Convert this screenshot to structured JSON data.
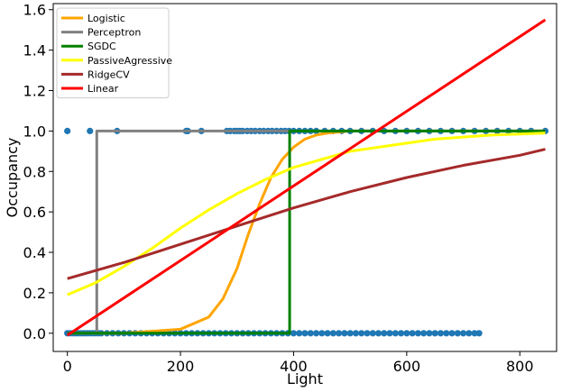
{
  "chart_data": {
    "type": "line",
    "title": "",
    "xlabel": "Light",
    "ylabel": "Occupancy",
    "xlim": [
      -25,
      865
    ],
    "ylim": [
      -0.09,
      1.63
    ],
    "xticks": [
      0,
      200,
      400,
      600,
      800
    ],
    "yticks": [
      0.0,
      0.2,
      0.4,
      0.6,
      0.8,
      1.0,
      1.2,
      1.4,
      1.6
    ],
    "xtick_labels": [
      "0",
      "200",
      "400",
      "600",
      "800"
    ],
    "ytick_labels": [
      "0.0",
      "0.2",
      "0.4",
      "0.6",
      "0.8",
      "1.0",
      "1.2",
      "1.4",
      "1.6"
    ],
    "grid": false,
    "legend_position": "top-left",
    "scatter": {
      "color": "#1f77b4",
      "points": [
        [
          0,
          1
        ],
        [
          40,
          1
        ],
        [
          88,
          1
        ],
        [
          210,
          1
        ],
        [
          213,
          1
        ],
        [
          237,
          1
        ],
        [
          282,
          1
        ],
        [
          288,
          1
        ],
        [
          295,
          1
        ],
        [
          300,
          1
        ],
        [
          305,
          1
        ],
        [
          310,
          1
        ],
        [
          318,
          1
        ],
        [
          325,
          1
        ],
        [
          332,
          1
        ],
        [
          340,
          1
        ],
        [
          347,
          1
        ],
        [
          355,
          1
        ],
        [
          362,
          1
        ],
        [
          370,
          1
        ],
        [
          378,
          1
        ],
        [
          385,
          1
        ],
        [
          392,
          1
        ],
        [
          400,
          1
        ],
        [
          410,
          1
        ],
        [
          420,
          1
        ],
        [
          430,
          1
        ],
        [
          440,
          1
        ],
        [
          455,
          1
        ],
        [
          470,
          1
        ],
        [
          485,
          1
        ],
        [
          500,
          1
        ],
        [
          520,
          1
        ],
        [
          540,
          1
        ],
        [
          560,
          1
        ],
        [
          580,
          1
        ],
        [
          600,
          1
        ],
        [
          620,
          1
        ],
        [
          640,
          1
        ],
        [
          660,
          1
        ],
        [
          680,
          1
        ],
        [
          700,
          1
        ],
        [
          720,
          1
        ],
        [
          740,
          1
        ],
        [
          760,
          1
        ],
        [
          780,
          1
        ],
        [
          800,
          1
        ],
        [
          820,
          1
        ],
        [
          845,
          1
        ],
        [
          0,
          0
        ],
        [
          5,
          0
        ],
        [
          10,
          0
        ],
        [
          15,
          0
        ],
        [
          20,
          0
        ],
        [
          25,
          0
        ],
        [
          30,
          0
        ],
        [
          35,
          0
        ],
        [
          40,
          0
        ],
        [
          45,
          0
        ],
        [
          50,
          0
        ],
        [
          55,
          0
        ],
        [
          60,
          0
        ],
        [
          70,
          0
        ],
        [
          80,
          0
        ],
        [
          90,
          0
        ],
        [
          100,
          0
        ],
        [
          110,
          0
        ],
        [
          120,
          0
        ],
        [
          130,
          0
        ],
        [
          140,
          0
        ],
        [
          150,
          0
        ],
        [
          160,
          0
        ],
        [
          170,
          0
        ],
        [
          180,
          0
        ],
        [
          190,
          0
        ],
        [
          200,
          0
        ],
        [
          210,
          0
        ],
        [
          220,
          0
        ],
        [
          230,
          0
        ],
        [
          240,
          0
        ],
        [
          250,
          0
        ],
        [
          260,
          0
        ],
        [
          270,
          0
        ],
        [
          280,
          0
        ],
        [
          290,
          0
        ],
        [
          300,
          0
        ],
        [
          310,
          0
        ],
        [
          320,
          0
        ],
        [
          330,
          0
        ],
        [
          340,
          0
        ],
        [
          350,
          0
        ],
        [
          360,
          0
        ],
        [
          370,
          0
        ],
        [
          380,
          0
        ],
        [
          390,
          0
        ],
        [
          400,
          0
        ],
        [
          410,
          0
        ],
        [
          420,
          0
        ],
        [
          430,
          0
        ],
        [
          440,
          0
        ],
        [
          450,
          0
        ],
        [
          460,
          0
        ],
        [
          470,
          0
        ],
        [
          480,
          0
        ],
        [
          490,
          0
        ],
        [
          500,
          0
        ],
        [
          510,
          0
        ],
        [
          520,
          0
        ],
        [
          530,
          0
        ],
        [
          540,
          0
        ],
        [
          550,
          0
        ],
        [
          560,
          0
        ],
        [
          570,
          0
        ],
        [
          580,
          0
        ],
        [
          590,
          0
        ],
        [
          600,
          0
        ],
        [
          610,
          0
        ],
        [
          620,
          0
        ],
        [
          630,
          0
        ],
        [
          640,
          0
        ],
        [
          650,
          0
        ],
        [
          660,
          0
        ],
        [
          670,
          0
        ],
        [
          680,
          0
        ],
        [
          690,
          0
        ],
        [
          700,
          0
        ],
        [
          710,
          0
        ],
        [
          720,
          0
        ],
        [
          728,
          0
        ]
      ]
    },
    "series": [
      {
        "name": "Logistic",
        "color": "#ffa500",
        "x": [
          0,
          100,
          200,
          250,
          275,
          300,
          320,
          340,
          360,
          380,
          400,
          420,
          440,
          460,
          480,
          500,
          600,
          700,
          845
        ],
        "y": [
          0.0,
          0.0,
          0.02,
          0.08,
          0.17,
          0.32,
          0.49,
          0.64,
          0.77,
          0.86,
          0.92,
          0.96,
          0.98,
          0.99,
          0.995,
          1.0,
          1.0,
          1.0,
          1.0
        ]
      },
      {
        "name": "Perceptron",
        "color": "#808080",
        "x": [
          0,
          52,
          52,
          845
        ],
        "y": [
          0.0,
          0.0,
          1.0,
          1.0
        ]
      },
      {
        "name": "SGDC",
        "color": "#008000",
        "x": [
          0,
          393,
          393,
          845
        ],
        "y": [
          0.0,
          0.0,
          1.0,
          1.0
        ]
      },
      {
        "name": "PassiveAgressive",
        "color": "#ffff00",
        "x": [
          0,
          50,
          100,
          150,
          200,
          250,
          300,
          350,
          400,
          450,
          500,
          550,
          600,
          650,
          700,
          750,
          800,
          845
        ],
        "y": [
          0.19,
          0.25,
          0.33,
          0.42,
          0.52,
          0.61,
          0.69,
          0.76,
          0.82,
          0.86,
          0.9,
          0.92,
          0.94,
          0.96,
          0.97,
          0.98,
          0.985,
          0.99
        ]
      },
      {
        "name": "RidgeCV",
        "color": "#a52a2a",
        "x": [
          0,
          100,
          200,
          300,
          400,
          500,
          600,
          700,
          800,
          845
        ],
        "y": [
          0.27,
          0.35,
          0.44,
          0.53,
          0.62,
          0.7,
          0.77,
          0.83,
          0.88,
          0.91
        ]
      },
      {
        "name": "Linear",
        "color": "#ff0000",
        "x": [
          0,
          845
        ],
        "y": [
          -0.01,
          1.55
        ]
      }
    ]
  }
}
